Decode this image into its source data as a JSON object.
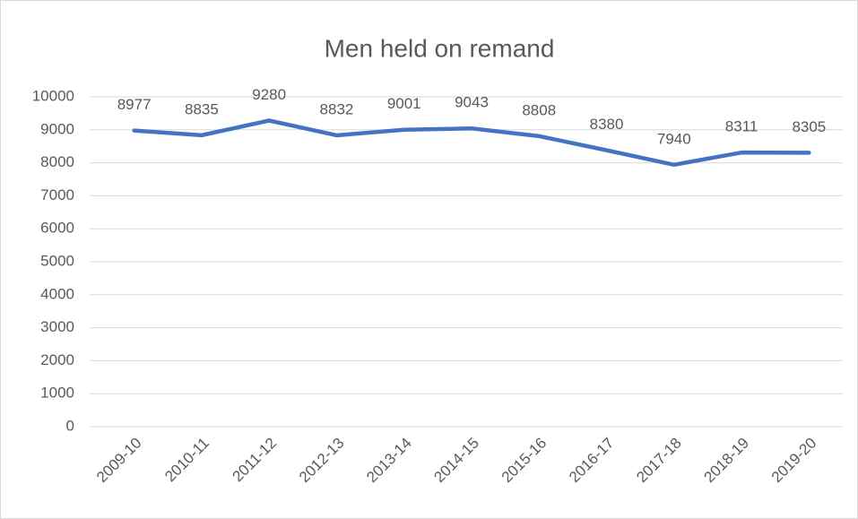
{
  "chart_data": {
    "type": "line",
    "title": "Men held on remand",
    "categories": [
      "2009-10",
      "2010-11",
      "2011-12",
      "2012-13",
      "2013-14",
      "2014-15",
      "2015-16",
      "2016-17",
      "2017-18",
      "2018-19",
      "2019-20"
    ],
    "series": [
      {
        "name": "Men held on remand",
        "color": "#4472c4",
        "values": [
          8977,
          8835,
          9280,
          8832,
          9001,
          9043,
          8808,
          8380,
          7940,
          8311,
          8305
        ]
      }
    ],
    "ylim": [
      0,
      10000
    ],
    "yticks": [
      0,
      1000,
      2000,
      3000,
      4000,
      5000,
      6000,
      7000,
      8000,
      9000,
      10000
    ],
    "grid": true,
    "legend": false
  }
}
